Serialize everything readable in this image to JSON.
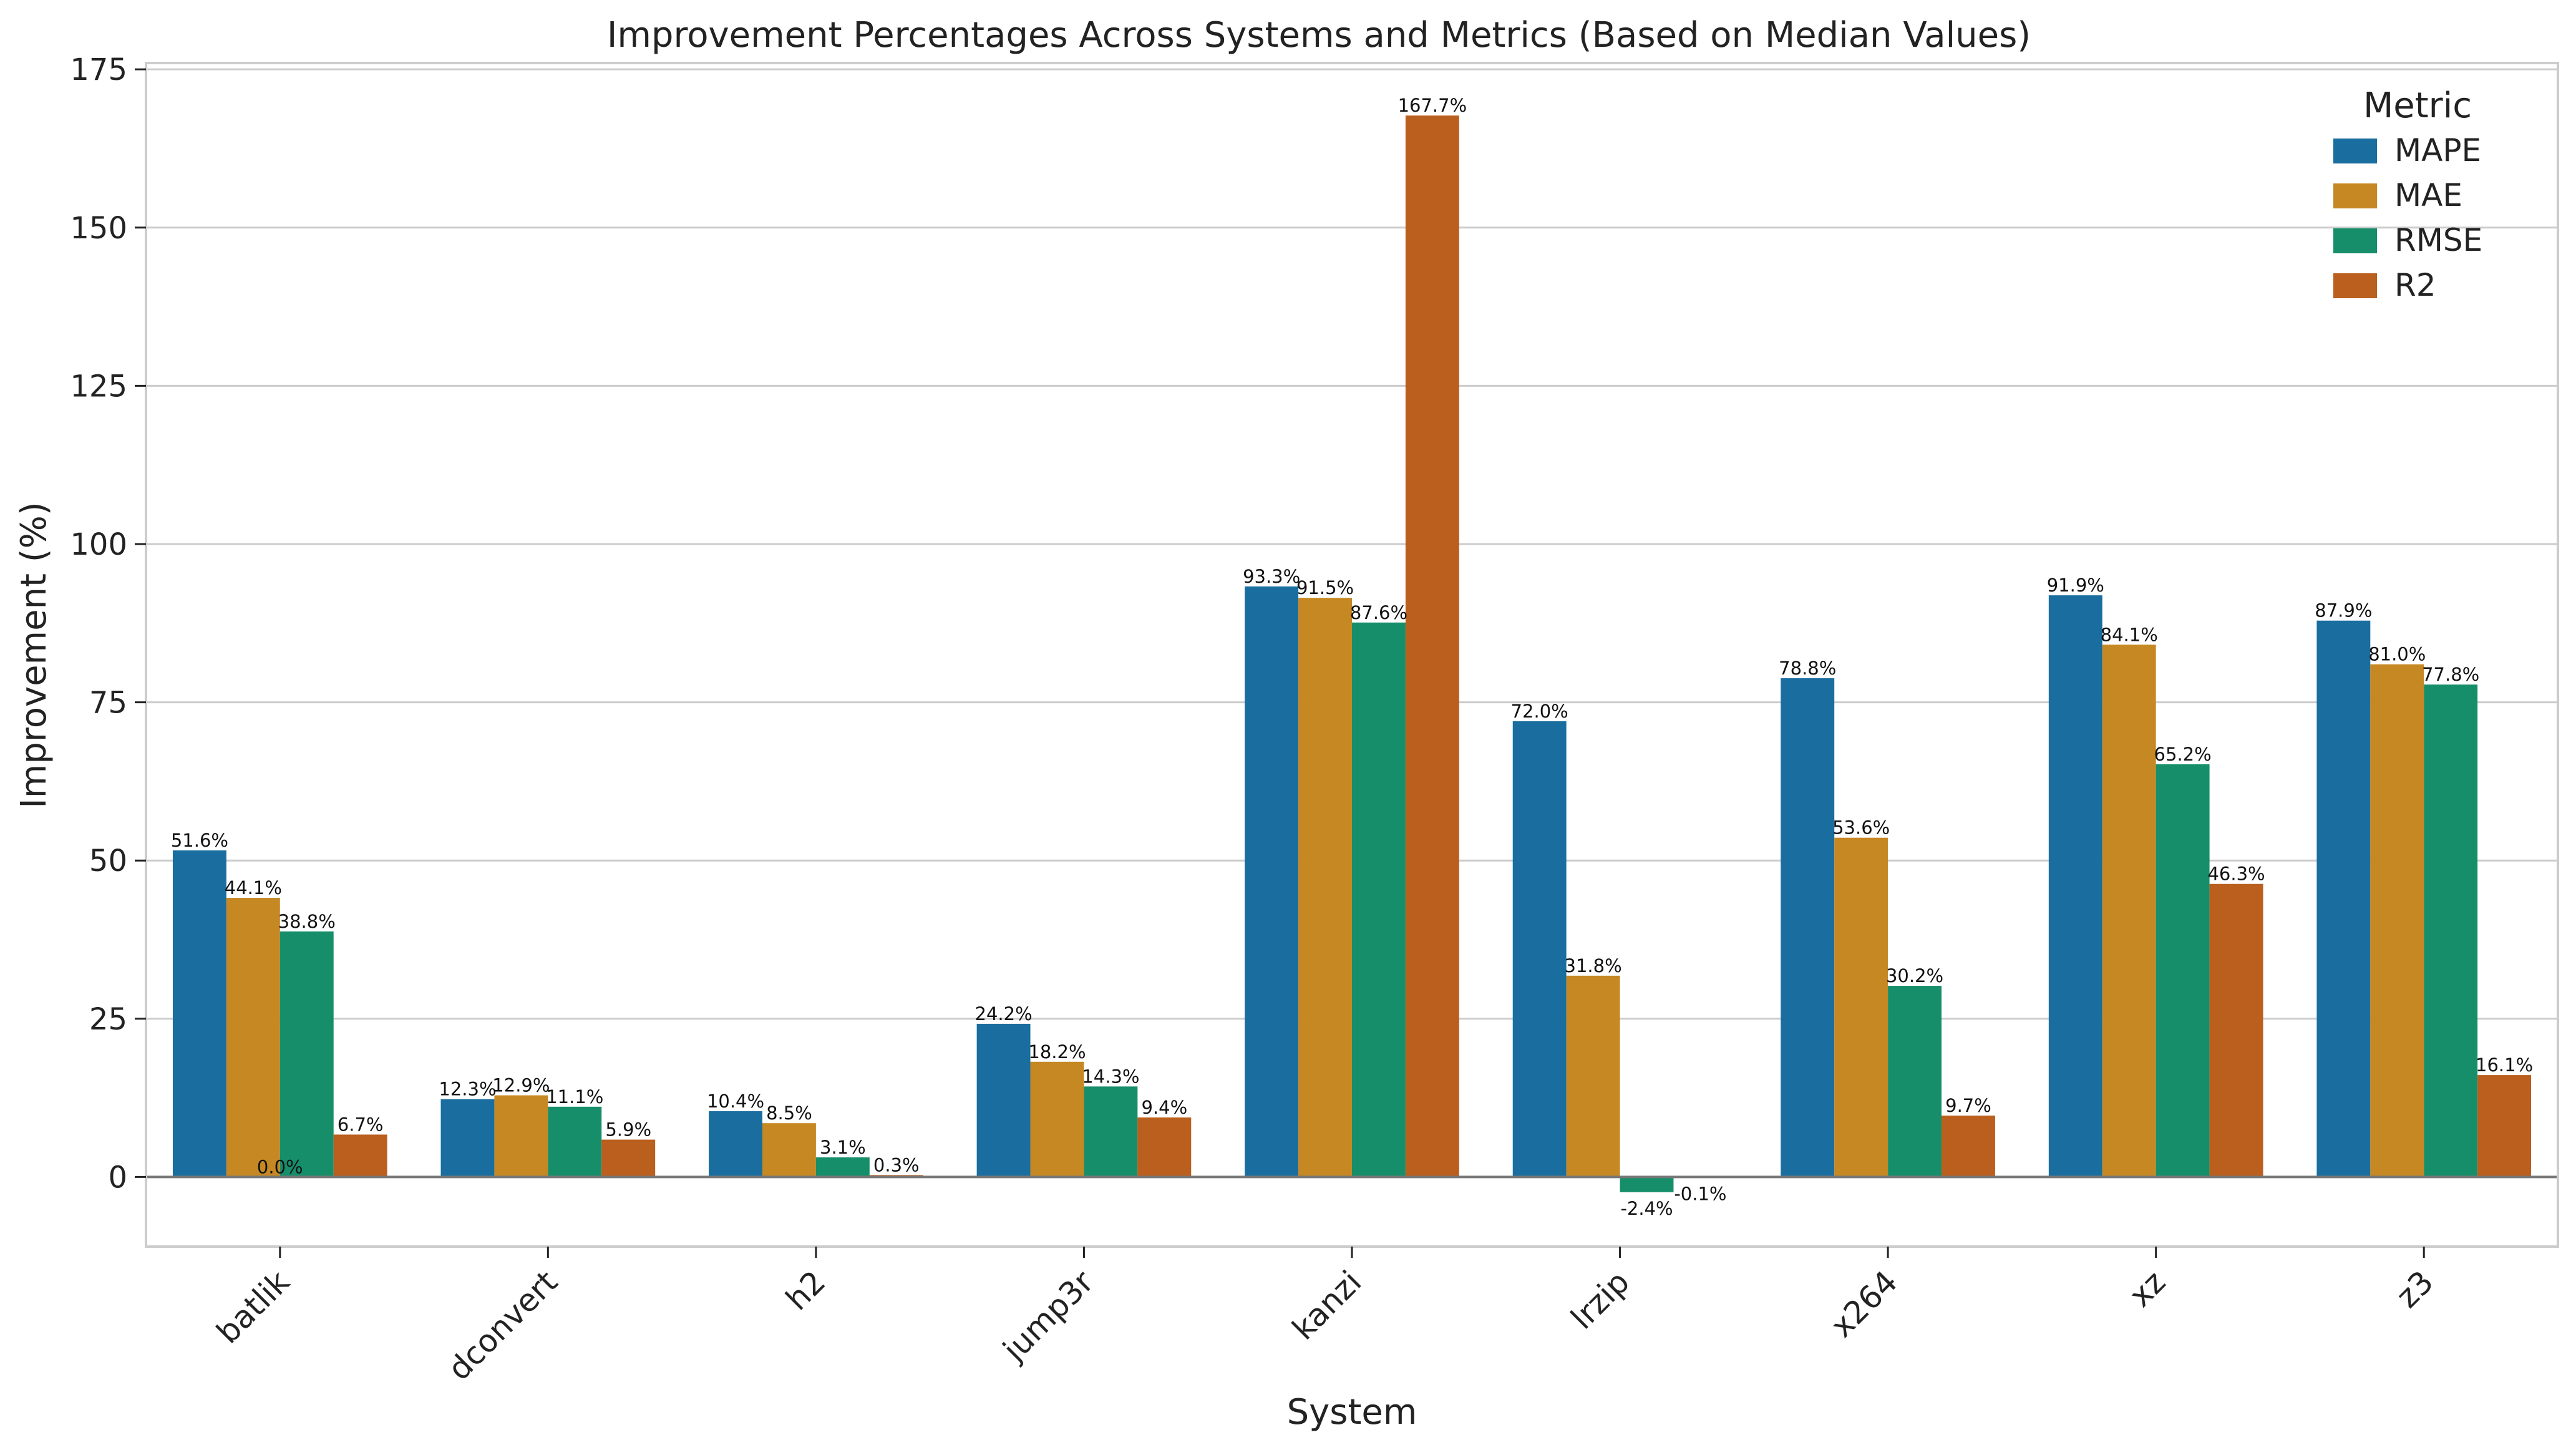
{
  "chart_data": {
    "type": "bar",
    "title": "Improvement Percentages Across Systems and Metrics (Based on Median Values)",
    "xlabel": "System",
    "ylabel": "Improvement (%)",
    "ylim": [
      -11,
      176
    ],
    "yticks": [
      0,
      25,
      50,
      75,
      100,
      125,
      150,
      175
    ],
    "grid": true,
    "legend": {
      "title": "Metric",
      "position": "top-right"
    },
    "categories": [
      "batlik",
      "dconvert",
      "h2",
      "jump3r",
      "kanzi",
      "lrzip",
      "x264",
      "xz",
      "z3"
    ],
    "series": [
      {
        "name": "MAPE",
        "color": "#1a6e9f",
        "values": [
          51.6,
          12.3,
          10.4,
          24.2,
          93.3,
          72.0,
          78.8,
          91.9,
          87.9
        ]
      },
      {
        "name": "MAE",
        "color": "#c68823",
        "values": [
          44.1,
          12.9,
          8.5,
          18.2,
          91.5,
          31.8,
          53.6,
          84.1,
          81.0
        ]
      },
      {
        "name": "RMSE",
        "color": "#178e6a",
        "values": [
          38.8,
          11.1,
          3.1,
          14.3,
          87.6,
          -2.4,
          30.2,
          65.2,
          77.8
        ]
      },
      {
        "name": "R2",
        "color": "#ba5f1e",
        "values": [
          6.7,
          5.9,
          0.3,
          9.4,
          167.7,
          -0.1,
          9.7,
          46.3,
          16.1
        ]
      }
    ],
    "extra_labels": [
      {
        "category": "batlik",
        "text": "0.0%"
      }
    ]
  }
}
